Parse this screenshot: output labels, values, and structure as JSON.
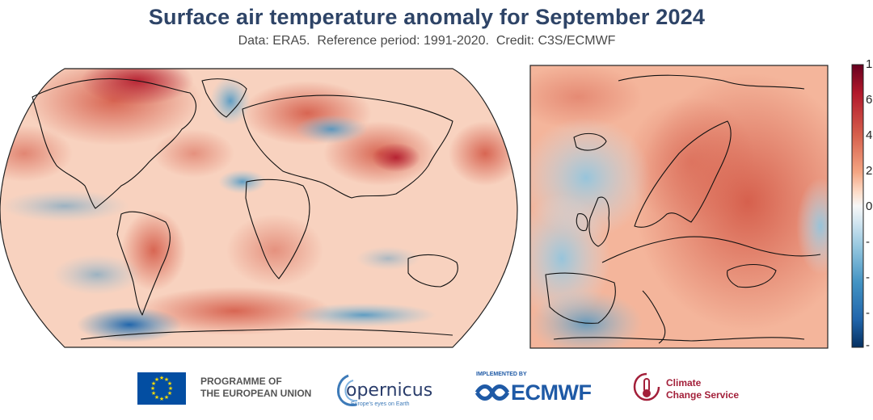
{
  "header": {
    "title": "Surface air temperature anomaly for September 2024",
    "subtitle": "Data: ERA5.  Reference period: 1991-2020.  Credit: C3S/ECMWF"
  },
  "colorbar": {
    "ticks": [
      "1",
      "6",
      "4",
      "2",
      "0",
      "-",
      "-",
      "-",
      "-"
    ],
    "colors": [
      "#053061",
      "#2166ac",
      "#4393c3",
      "#92c5de",
      "#d1e5f0",
      "#f7f7f7",
      "#fddbc7",
      "#f4a582",
      "#d6604d",
      "#b2182b",
      "#67001f"
    ]
  },
  "maps": {
    "world": {
      "projection": "Robinson",
      "base_color": "#f6c4ab",
      "ocean_tint": "#f8d6c6"
    },
    "europe": {
      "base_color": "#f4a582"
    }
  },
  "footer": {
    "eu_programme": [
      "PROGRAMME OF",
      "THE EUROPEAN UNION"
    ],
    "copernicus_name": "opernicus",
    "copernicus_tagline": "Europe's eyes on Earth",
    "ecmwf_implemented": "IMPLEMENTED BY",
    "ecmwf_name": "ECMWF",
    "c3s_name": [
      "Climate",
      "Change Service"
    ]
  }
}
